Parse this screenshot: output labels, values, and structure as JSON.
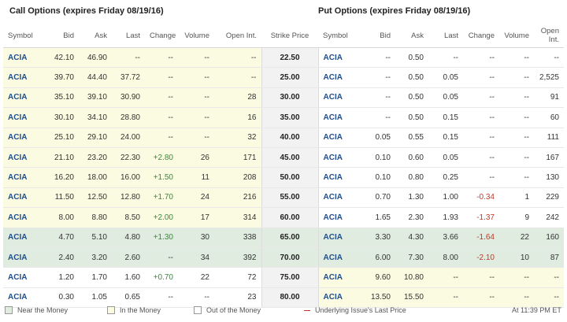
{
  "titles": {
    "call": "Call Options (expires Friday 08/19/16)",
    "put": "Put Options (expires Friday 08/19/16)"
  },
  "headers": {
    "symbol": "Symbol",
    "bid": "Bid",
    "ask": "Ask",
    "last": "Last",
    "change": "Change",
    "volume": "Volume",
    "open_int": "Open Int.",
    "strike": "Strike Price",
    "open_put": "Open Int."
  },
  "rows": [
    {
      "strike": "22.50",
      "call": {
        "sym": "ACIA",
        "bid": "42.10",
        "ask": "46.90",
        "last": "--",
        "chg": "--",
        "vol": "--",
        "oi": "--"
      },
      "put": {
        "sym": "ACIA",
        "bid": "--",
        "ask": "0.50",
        "last": "--",
        "chg": "--",
        "vol": "--",
        "oi": "--"
      }
    },
    {
      "strike": "25.00",
      "call": {
        "sym": "ACIA",
        "bid": "39.70",
        "ask": "44.40",
        "last": "37.72",
        "chg": "--",
        "vol": "--",
        "oi": "--"
      },
      "put": {
        "sym": "ACIA",
        "bid": "--",
        "ask": "0.50",
        "last": "0.05",
        "chg": "--",
        "vol": "--",
        "oi": "2,525"
      }
    },
    {
      "strike": "30.00",
      "call": {
        "sym": "ACIA",
        "bid": "35.10",
        "ask": "39.10",
        "last": "30.90",
        "chg": "--",
        "vol": "--",
        "oi": "28"
      },
      "put": {
        "sym": "ACIA",
        "bid": "--",
        "ask": "0.50",
        "last": "0.05",
        "chg": "--",
        "vol": "--",
        "oi": "91"
      }
    },
    {
      "strike": "35.00",
      "call": {
        "sym": "ACIA",
        "bid": "30.10",
        "ask": "34.10",
        "last": "28.80",
        "chg": "--",
        "vol": "--",
        "oi": "16"
      },
      "put": {
        "sym": "ACIA",
        "bid": "--",
        "ask": "0.50",
        "last": "0.15",
        "chg": "--",
        "vol": "--",
        "oi": "60"
      }
    },
    {
      "strike": "40.00",
      "call": {
        "sym": "ACIA",
        "bid": "25.10",
        "ask": "29.10",
        "last": "24.00",
        "chg": "--",
        "vol": "--",
        "oi": "32"
      },
      "put": {
        "sym": "ACIA",
        "bid": "0.05",
        "ask": "0.55",
        "last": "0.15",
        "chg": "--",
        "vol": "--",
        "oi": "111"
      }
    },
    {
      "strike": "45.00",
      "call": {
        "sym": "ACIA",
        "bid": "21.10",
        "ask": "23.20",
        "last": "22.30",
        "chg": "+2.80",
        "vol": "26",
        "oi": "171"
      },
      "put": {
        "sym": "ACIA",
        "bid": "0.10",
        "ask": "0.60",
        "last": "0.05",
        "chg": "--",
        "vol": "--",
        "oi": "167"
      }
    },
    {
      "strike": "50.00",
      "call": {
        "sym": "ACIA",
        "bid": "16.20",
        "ask": "18.00",
        "last": "16.00",
        "chg": "+1.50",
        "vol": "11",
        "oi": "208"
      },
      "put": {
        "sym": "ACIA",
        "bid": "0.10",
        "ask": "0.80",
        "last": "0.25",
        "chg": "--",
        "vol": "--",
        "oi": "130"
      }
    },
    {
      "strike": "55.00",
      "call": {
        "sym": "ACIA",
        "bid": "11.50",
        "ask": "12.50",
        "last": "12.80",
        "chg": "+1.70",
        "vol": "24",
        "oi": "216"
      },
      "put": {
        "sym": "ACIA",
        "bid": "0.70",
        "ask": "1.30",
        "last": "1.00",
        "chg": "-0.34",
        "vol": "1",
        "oi": "229"
      }
    },
    {
      "strike": "60.00",
      "call": {
        "sym": "ACIA",
        "bid": "8.00",
        "ask": "8.80",
        "last": "8.50",
        "chg": "+2.00",
        "vol": "17",
        "oi": "314"
      },
      "put": {
        "sym": "ACIA",
        "bid": "1.65",
        "ask": "2.30",
        "last": "1.93",
        "chg": "-1.37",
        "vol": "9",
        "oi": "242"
      }
    },
    {
      "strike": "65.00",
      "call": {
        "sym": "ACIA",
        "bid": "4.70",
        "ask": "5.10",
        "last": "4.80",
        "chg": "+1.30",
        "vol": "30",
        "oi": "338"
      },
      "put": {
        "sym": "ACIA",
        "bid": "3.30",
        "ask": "4.30",
        "last": "3.66",
        "chg": "-1.64",
        "vol": "22",
        "oi": "160"
      }
    },
    {
      "strike": "70.00",
      "call": {
        "sym": "ACIA",
        "bid": "2.40",
        "ask": "3.20",
        "last": "2.60",
        "chg": "--",
        "vol": "34",
        "oi": "392"
      },
      "put": {
        "sym": "ACIA",
        "bid": "6.00",
        "ask": "7.30",
        "last": "8.00",
        "chg": "-2.10",
        "vol": "10",
        "oi": "87"
      }
    },
    {
      "strike": "75.00",
      "call": {
        "sym": "ACIA",
        "bid": "1.20",
        "ask": "1.70",
        "last": "1.60",
        "chg": "+0.70",
        "vol": "22",
        "oi": "72"
      },
      "put": {
        "sym": "ACIA",
        "bid": "9.60",
        "ask": "10.80",
        "last": "--",
        "chg": "--",
        "vol": "--",
        "oi": "--"
      }
    },
    {
      "strike": "80.00",
      "call": {
        "sym": "ACIA",
        "bid": "0.30",
        "ask": "1.05",
        "last": "0.65",
        "chg": "--",
        "vol": "--",
        "oi": "23"
      },
      "put": {
        "sym": "ACIA",
        "bid": "13.50",
        "ask": "15.50",
        "last": "--",
        "chg": "--",
        "vol": "--",
        "oi": "--"
      }
    }
  ],
  "legend": {
    "near": "Near the Money",
    "itm": "In the Money",
    "otm": "Out of the Money",
    "last": "Underlying Issue's Last Price",
    "time": "At 11:39 PM ET"
  },
  "colors": {
    "near_money": "#dfecdf",
    "in_money": "#fbfbe2",
    "last_price_line": "#c0392b",
    "symbol": "#1f4e8c"
  }
}
